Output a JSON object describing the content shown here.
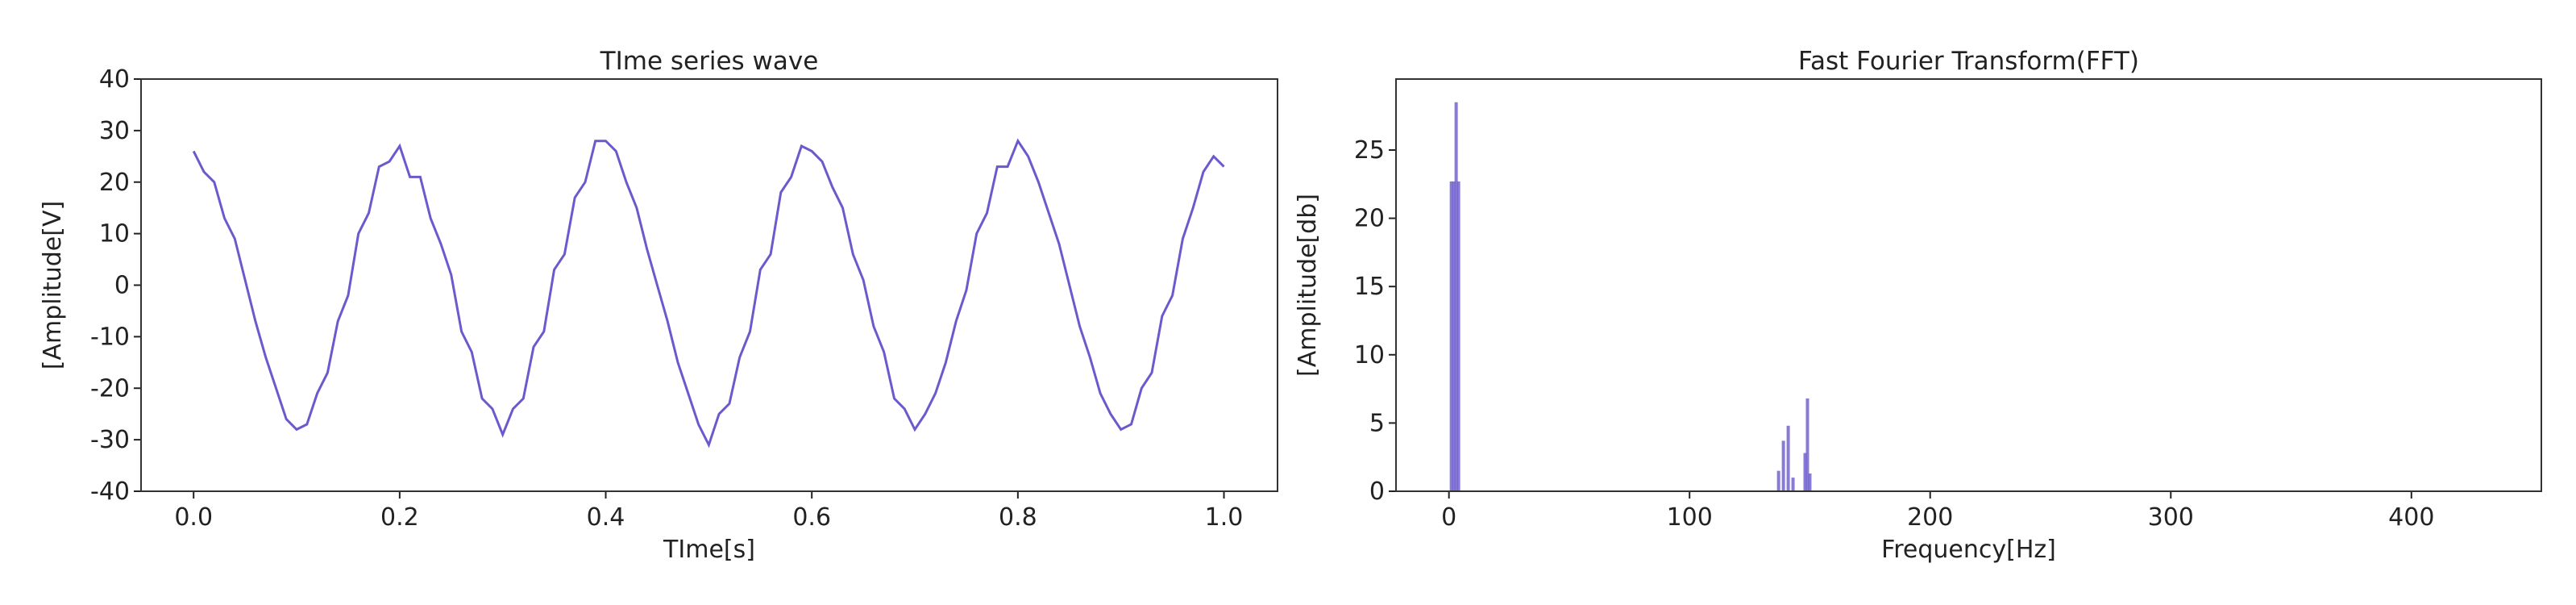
{
  "chart_data": [
    {
      "type": "line",
      "title": "TIme series wave",
      "x_label": "TIme[s]",
      "y_label": "[Amplitude[V]",
      "color": "#6a5acd",
      "x": [
        0,
        0.01,
        0.02,
        0.03,
        0.04,
        0.05,
        0.06,
        0.07,
        0.08,
        0.09,
        0.1,
        0.11,
        0.12,
        0.13,
        0.14,
        0.15,
        0.16,
        0.17,
        0.18,
        0.19,
        0.2,
        0.21,
        0.22,
        0.23,
        0.24,
        0.25,
        0.26,
        0.27,
        0.28,
        0.29,
        0.3,
        0.31,
        0.32,
        0.33,
        0.34,
        0.35,
        0.36,
        0.37,
        0.38,
        0.39,
        0.4,
        0.41,
        0.42,
        0.43,
        0.44,
        0.45,
        0.46,
        0.47,
        0.48,
        0.49,
        0.5,
        0.51,
        0.52,
        0.53,
        0.54,
        0.55,
        0.56,
        0.57,
        0.58,
        0.59,
        0.6,
        0.61,
        0.62,
        0.63,
        0.64,
        0.65,
        0.66,
        0.67,
        0.68,
        0.69,
        0.7,
        0.71,
        0.72,
        0.73,
        0.74,
        0.75,
        0.76,
        0.77,
        0.78,
        0.79,
        0.8,
        0.81,
        0.82,
        0.83,
        0.84,
        0.85,
        0.86,
        0.87,
        0.88,
        0.89,
        0.9,
        0.91,
        0.92,
        0.93,
        0.94,
        0.95,
        0.96,
        0.97,
        0.98,
        0.99,
        1
      ],
      "values": [
        26,
        22,
        20,
        13,
        9,
        1,
        -7,
        -14,
        -20,
        -26,
        -28,
        -27,
        -21,
        -17,
        -7,
        -2,
        10,
        14,
        23,
        24,
        27,
        21,
        21,
        13,
        8,
        2,
        -9,
        -13,
        -22,
        -24,
        -29,
        -24,
        -22,
        -12,
        -9,
        3,
        6,
        17,
        20,
        28,
        28,
        26,
        20,
        15,
        7,
        0,
        -7,
        -15,
        -21,
        -27,
        -31,
        -25,
        -23,
        -14,
        -9,
        3,
        6,
        18,
        21,
        27,
        26,
        24,
        19,
        15,
        6,
        1,
        -8,
        -13,
        -22,
        -24,
        -28,
        -25,
        -21,
        -15,
        -7,
        -1,
        10,
        14,
        23,
        23,
        28,
        25,
        20,
        14,
        8,
        0,
        -8,
        -14,
        -21,
        -25,
        -28,
        -27,
        -20,
        -17,
        -6,
        -2,
        9,
        15,
        22,
        25,
        23
      ],
      "xlim": [
        -0.051,
        1.052
      ],
      "ylim": [
        -40,
        40
      ],
      "xticks": [
        {
          "value": 0,
          "label": "0.0"
        },
        0.2,
        0.4,
        0.6,
        0.8,
        {
          "value": 1,
          "label": "1.0"
        }
      ],
      "yticks": [
        -40,
        -30,
        -20,
        -10,
        0,
        10,
        20,
        30,
        40
      ]
    },
    {
      "type": "bar",
      "title": "Fast Fourier Transform(FFT)",
      "x_label": "Frequency[Hz]",
      "y_label": "[Amplitude[db]",
      "color": "#6a5acd",
      "x": [
        1,
        2,
        3,
        4,
        137,
        139,
        141,
        143,
        148,
        149,
        150
      ],
      "values": [
        22.7,
        22.7,
        28.5,
        22.7,
        1.5,
        3.7,
        4.8,
        1,
        2.8,
        6.8,
        1.3
      ],
      "xlim": [
        -22,
        454
      ],
      "ylim": [
        0,
        30.2
      ],
      "xticks": [
        0,
        100,
        200,
        300,
        400
      ],
      "yticks": [
        0,
        5,
        10,
        15,
        20,
        25
      ]
    }
  ]
}
